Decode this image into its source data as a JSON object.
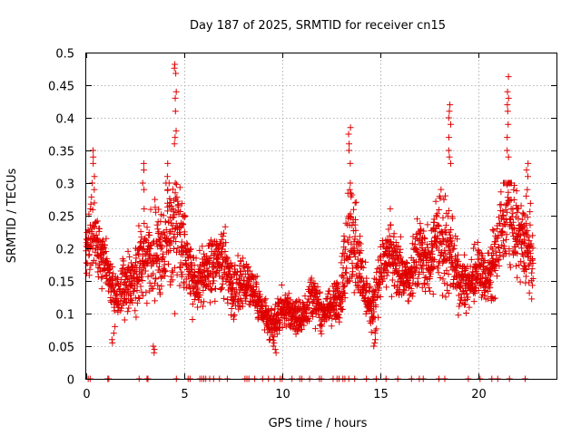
{
  "chart_data": {
    "type": "scatter",
    "title": "Day 187 of 2025, SRMTID for receiver cn15",
    "xlabel": "GPS time / hours",
    "ylabel": "SRMTID / TECUs",
    "xlim": [
      0,
      24
    ],
    "ylim": [
      0,
      0.5
    ],
    "x_ticks": [
      0,
      5,
      10,
      15,
      20
    ],
    "x_tick_labels": [
      "0",
      "5",
      "10",
      "15",
      "20"
    ],
    "y_ticks": [
      0,
      0.05,
      0.1,
      0.15,
      0.2,
      0.25,
      0.3,
      0.35,
      0.4,
      0.45,
      0.5
    ],
    "y_tick_labels": [
      "0",
      "0.05",
      "0.1",
      "0.15",
      "0.2",
      "0.25",
      "0.3",
      "0.35",
      "0.4",
      "0.45",
      "0.5"
    ],
    "grid": true,
    "marker": "+",
    "marker_color": "#e00000",
    "series": [
      {
        "name": "SRMTID",
        "profile_x": [
          0,
          0.3,
          0.6,
          1.0,
          1.5,
          2.0,
          2.5,
          3.0,
          3.5,
          4.0,
          4.5,
          5.0,
          5.5,
          6.0,
          6.5,
          7.0,
          7.5,
          8.0,
          8.5,
          9.0,
          9.5,
          10.0,
          10.5,
          11.0,
          11.5,
          12.0,
          12.5,
          13.0,
          13.4,
          13.8,
          14.2,
          14.6,
          15.0,
          15.5,
          16.0,
          16.5,
          17.0,
          17.5,
          18.0,
          18.5,
          19.0,
          19.5,
          20.0,
          20.5,
          21.0,
          21.5,
          22.0,
          22.5,
          22.8
        ],
        "profile_mean": [
          0.19,
          0.25,
          0.2,
          0.18,
          0.12,
          0.15,
          0.15,
          0.2,
          0.2,
          0.2,
          0.23,
          0.2,
          0.15,
          0.16,
          0.17,
          0.18,
          0.14,
          0.15,
          0.14,
          0.1,
          0.08,
          0.11,
          0.1,
          0.09,
          0.13,
          0.1,
          0.11,
          0.13,
          0.22,
          0.2,
          0.13,
          0.1,
          0.16,
          0.2,
          0.17,
          0.15,
          0.2,
          0.17,
          0.23,
          0.2,
          0.15,
          0.14,
          0.17,
          0.15,
          0.2,
          0.27,
          0.22,
          0.2,
          0.18
        ],
        "profile_spread": [
          0.05,
          0.09,
          0.05,
          0.04,
          0.04,
          0.05,
          0.05,
          0.08,
          0.08,
          0.08,
          0.1,
          0.06,
          0.05,
          0.05,
          0.05,
          0.06,
          0.05,
          0.05,
          0.04,
          0.03,
          0.03,
          0.03,
          0.03,
          0.03,
          0.04,
          0.03,
          0.03,
          0.04,
          0.1,
          0.08,
          0.04,
          0.04,
          0.06,
          0.05,
          0.05,
          0.05,
          0.06,
          0.05,
          0.1,
          0.08,
          0.05,
          0.05,
          0.05,
          0.05,
          0.07,
          0.1,
          0.07,
          0.07,
          0.06
        ],
        "peaks": [
          {
            "x": 0.4,
            "y": [
              0.35,
              0.34,
              0.33,
              0.31,
              0.29
            ]
          },
          {
            "x": 2.9,
            "y": [
              0.33,
              0.32,
              0.3,
              0.29
            ]
          },
          {
            "x": 4.1,
            "y": [
              0.33,
              0.31,
              0.29,
              0.3
            ]
          },
          {
            "x": 4.55,
            "y": [
              0.482,
              0.476,
              0.468,
              0.44,
              0.43,
              0.41,
              0.38,
              0.37,
              0.36
            ]
          },
          {
            "x": 13.45,
            "y": [
              0.385,
              0.375,
              0.36,
              0.35,
              0.33,
              0.3,
              0.29
            ]
          },
          {
            "x": 18.55,
            "y": [
              0.42,
              0.41,
              0.4,
              0.39,
              0.37,
              0.35,
              0.34,
              0.33
            ]
          },
          {
            "x": 21.5,
            "y": [
              0.463,
              0.44,
              0.43,
              0.42,
              0.41,
              0.39,
              0.37,
              0.35,
              0.34
            ]
          },
          {
            "x": 22.5,
            "y": [
              0.33,
              0.32,
              0.31,
              0.29,
              0.28
            ]
          }
        ],
        "lows": [
          {
            "x": 1.4,
            "y": [
              0.06,
              0.055,
              0.07,
              0.08
            ]
          },
          {
            "x": 3.5,
            "y": [
              0.04,
              0.045,
              0.05
            ]
          },
          {
            "x": 9.6,
            "y": [
              0.04,
              0.045,
              0.05,
              0.055
            ]
          },
          {
            "x": 14.7,
            "y": [
              0.05,
              0.055,
              0.06,
              0.07
            ]
          }
        ],
        "zero_values_x": [
          0.1,
          0.2,
          1.1,
          1.15,
          2.7,
          3.1,
          3.15,
          4.6,
          5.2,
          5.3,
          5.8,
          5.9,
          6.0,
          6.1,
          6.3,
          6.5,
          6.8,
          7.2,
          8.1,
          8.2,
          8.3,
          8.6,
          9.0,
          9.3,
          9.6,
          9.9,
          10.0,
          10.5,
          10.9,
          11.0,
          11.4,
          11.9,
          12.0,
          12.6,
          12.8,
          12.9,
          13.1,
          13.2,
          13.4,
          13.7,
          14.3,
          14.8,
          15.3,
          15.9,
          16.6,
          17.0,
          17.2,
          18.0,
          18.3,
          19.5,
          20.1,
          20.7,
          21.0,
          21.6,
          22.4
        ]
      }
    ]
  }
}
